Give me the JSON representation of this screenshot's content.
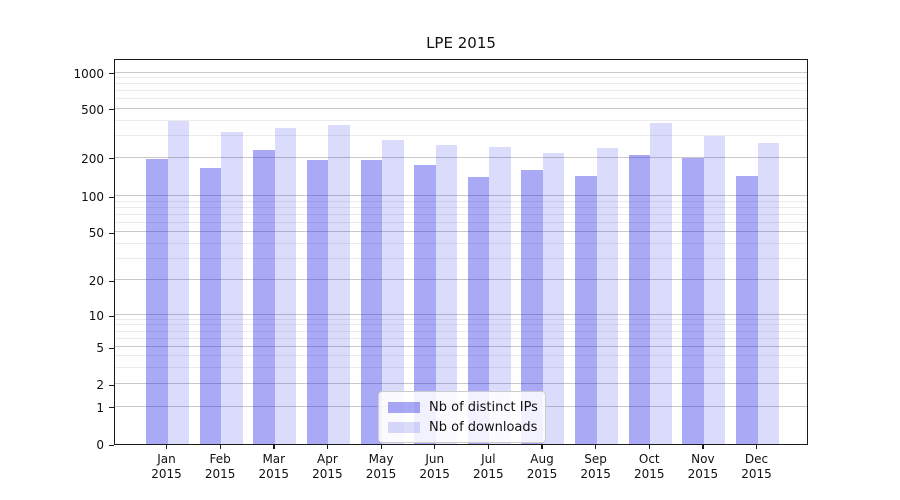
{
  "title": "LPE 2015",
  "chart_data": {
    "type": "bar",
    "title": "LPE 2015",
    "categories": [
      "Jan 2015",
      "Feb 2015",
      "Mar 2015",
      "Apr 2015",
      "May 2015",
      "Jun 2015",
      "Jul 2015",
      "Aug 2015",
      "Sep 2015",
      "Oct 2015",
      "Nov 2015",
      "Dec 2015"
    ],
    "series": [
      {
        "name": "Nb of distinct IPs",
        "color": "rgba(30,30,230,0.38)",
        "values": [
          195,
          165,
          230,
          190,
          190,
          175,
          140,
          160,
          145,
          210,
          200,
          145
        ]
      },
      {
        "name": "Nb of downloads",
        "color": "rgba(30,30,230,0.16)",
        "values": [
          395,
          320,
          350,
          365,
          280,
          255,
          245,
          220,
          240,
          385,
          300,
          265
        ]
      }
    ],
    "xlabel": "",
    "ylabel": "",
    "yscale": "log-like (symlog)",
    "yticks": [
      0,
      1,
      2,
      5,
      10,
      20,
      50,
      100,
      200,
      500,
      1000
    ],
    "ylim": [
      0,
      1200
    ],
    "grid": "on",
    "legend_position": "lower center"
  }
}
